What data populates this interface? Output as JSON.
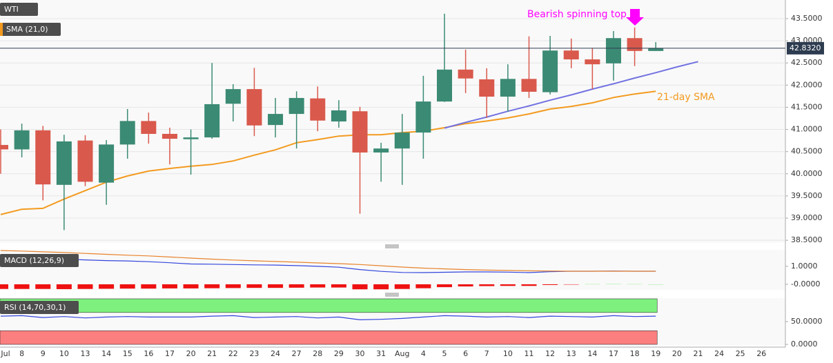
{
  "chart_data": [
    {
      "type": "candlestick",
      "categories": [
        "Jul",
        "8",
        "9",
        "10",
        "13",
        "14",
        "15",
        "16",
        "17",
        "20",
        "21",
        "22",
        "23",
        "24",
        "27",
        "28",
        "29",
        "30",
        "31",
        "Aug",
        "4",
        "5",
        "6",
        "7",
        "10",
        "11",
        "12",
        "13",
        "14",
        "17",
        "18",
        "19",
        "20",
        "21",
        "24",
        "25",
        "26"
      ],
      "series": [
        {
          "name": "WTI",
          "up_color": "#3b8a74",
          "down_color": "#d9594c",
          "open": [
            40.65,
            40.55,
            40.98,
            39.75,
            40.75,
            39.8,
            40.66,
            41.19,
            40.9,
            40.78,
            40.82,
            41.58,
            41.91,
            41.1,
            41.35,
            41.7,
            41.18,
            41.41,
            40.48,
            40.57,
            40.93,
            41.63,
            42.35,
            42.13,
            41.74,
            42.14,
            41.84,
            42.78,
            42.58,
            42.49,
            43.06,
            42.77,
            null,
            null,
            null,
            null,
            null
          ],
          "high": [
            41.0,
            41.13,
            41.08,
            40.88,
            40.87,
            40.76,
            41.46,
            41.38,
            41.04,
            41.0,
            42.5,
            42.02,
            42.39,
            41.71,
            41.86,
            41.97,
            41.66,
            41.51,
            40.7,
            41.35,
            42.21,
            43.61,
            42.8,
            42.38,
            42.47,
            43.1,
            43.11,
            43.05,
            42.83,
            43.22,
            43.3,
            42.97,
            null,
            null,
            null,
            null,
            null
          ],
          "low": [
            40.0,
            40.37,
            39.4,
            38.73,
            39.72,
            39.3,
            40.34,
            40.68,
            40.21,
            39.98,
            40.79,
            41.18,
            40.85,
            40.82,
            40.57,
            40.96,
            41.04,
            39.1,
            39.82,
            39.75,
            40.34,
            41.62,
            41.82,
            41.26,
            41.4,
            41.71,
            41.79,
            42.38,
            41.91,
            42.1,
            42.43,
            42.77,
            null,
            null,
            null,
            null,
            null
          ],
          "close": [
            40.55,
            40.98,
            39.76,
            40.73,
            39.82,
            40.66,
            41.19,
            40.9,
            40.79,
            40.82,
            41.57,
            41.91,
            41.09,
            41.35,
            41.71,
            41.2,
            41.43,
            40.48,
            40.57,
            40.93,
            41.63,
            42.35,
            42.15,
            41.74,
            42.14,
            41.85,
            42.78,
            42.58,
            42.47,
            43.06,
            42.77,
            42.832,
            null,
            null,
            null,
            null,
            null
          ]
        }
      ],
      "sma": {
        "name": "SMA (21,0)",
        "color": "#f39a1e",
        "values": [
          39.08,
          39.2,
          39.22,
          39.43,
          39.62,
          39.81,
          39.95,
          40.06,
          40.12,
          40.17,
          40.21,
          40.29,
          40.42,
          40.54,
          40.7,
          40.77,
          40.85,
          40.88,
          40.88,
          40.93,
          40.96,
          41.04,
          41.13,
          41.19,
          41.26,
          41.35,
          41.46,
          41.52,
          41.6,
          41.72,
          41.8,
          41.86,
          null,
          null,
          null,
          null,
          null
        ]
      },
      "trendline": {
        "color": "#7272e2",
        "values": [
          null,
          null,
          null,
          null,
          null,
          null,
          null,
          null,
          null,
          null,
          null,
          null,
          null,
          null,
          null,
          null,
          null,
          null,
          null,
          null,
          null,
          41.03,
          41.16,
          41.28,
          41.41,
          41.53,
          41.66,
          41.78,
          41.91,
          42.03,
          42.16,
          42.28,
          42.41,
          42.53,
          null,
          null,
          null
        ]
      },
      "last_price": {
        "value": 42.832,
        "label": "42.8320"
      },
      "annotations": [
        {
          "text": "Bearish spinning top",
          "color": "#ff00ff"
        },
        {
          "text": "21-day SMA",
          "color": "#f39a1e"
        }
      ],
      "ylim": [
        38.44,
        43.92
      ],
      "yticks": [
        {
          "value": 38.5,
          "label": "38.5000"
        },
        {
          "value": 39,
          "label": "39.0000"
        },
        {
          "value": 39.5,
          "label": "39.5000"
        },
        {
          "value": 40,
          "label": "40.0000"
        },
        {
          "value": 40.5,
          "label": "40.5000"
        },
        {
          "value": 41,
          "label": "41.0000"
        },
        {
          "value": 41.5,
          "label": "41.5000"
        },
        {
          "value": 42,
          "label": "42.0000"
        },
        {
          "value": 42.5,
          "label": "42.5000"
        },
        {
          "value": 43,
          "label": "43.0000"
        },
        {
          "value": 43.5,
          "label": "43.5000"
        }
      ],
      "grid": true
    },
    {
      "type": "macd",
      "name": "MACD (12,26,9)",
      "series": [
        {
          "color": "#3344dd",
          "values": [
            1.62,
            1.55,
            1.48,
            1.4,
            1.36,
            1.32,
            1.3,
            1.26,
            1.2,
            1.13,
            1.12,
            1.1,
            1.08,
            1.07,
            1.04,
            1.0,
            0.95,
            0.82,
            0.72,
            0.66,
            0.65,
            0.67,
            0.69,
            0.69,
            0.68,
            0.65,
            0.7,
            0.73,
            0.73,
            0.74,
            0.73,
            0.73
          ]
        },
        {
          "color": "#e8822a",
          "values": [
            1.88,
            1.85,
            1.81,
            1.77,
            1.72,
            1.67,
            1.62,
            1.58,
            1.52,
            1.46,
            1.4,
            1.35,
            1.31,
            1.27,
            1.23,
            1.19,
            1.15,
            1.1,
            1.03,
            0.96,
            0.9,
            0.86,
            0.82,
            0.79,
            0.77,
            0.75,
            0.74,
            0.73,
            0.73,
            0.73,
            0.73,
            0.73
          ]
        }
      ],
      "histogram": {
        "up_color": "#99ee99",
        "down_color": "#ee1111",
        "values": [
          -0.26,
          -0.26,
          -0.26,
          -0.27,
          -0.26,
          -0.25,
          -0.24,
          -0.24,
          -0.23,
          -0.23,
          -0.22,
          -0.21,
          -0.2,
          -0.2,
          -0.19,
          -0.18,
          -0.18,
          -0.28,
          -0.28,
          -0.26,
          -0.22,
          -0.16,
          -0.12,
          -0.1,
          -0.09,
          -0.09,
          -0.04,
          -0.01,
          0.01,
          0.02,
          0.01,
          0.0
        ]
      },
      "ylim": [
        -0.31,
        1.92
      ],
      "yticks": [
        {
          "value": 1,
          "label": "1.0000"
        },
        {
          "value": 0,
          "label": "-0.0000"
        }
      ]
    },
    {
      "type": "rsi",
      "name": "RSI (14,70,30,1)",
      "series": [
        {
          "color": "#3344dd",
          "values": [
            62,
            63,
            59,
            61,
            58,
            60,
            61,
            60,
            60,
            60,
            62,
            63,
            59,
            60,
            61,
            58,
            60,
            54,
            55,
            57,
            60,
            63,
            62,
            60,
            61,
            59,
            62,
            61,
            60,
            63,
            61,
            62
          ]
        }
      ],
      "bands": [
        {
          "range": [
            70,
            100
          ],
          "color": "#7ef07e"
        },
        {
          "range": [
            0,
            30
          ],
          "color": "#fb7f7f"
        }
      ],
      "ylim": [
        -1.5,
        101.5
      ],
      "yticks": [
        {
          "value": 50,
          "label": "50.0000"
        },
        {
          "value": 0,
          "label": "0.0000"
        }
      ]
    }
  ]
}
